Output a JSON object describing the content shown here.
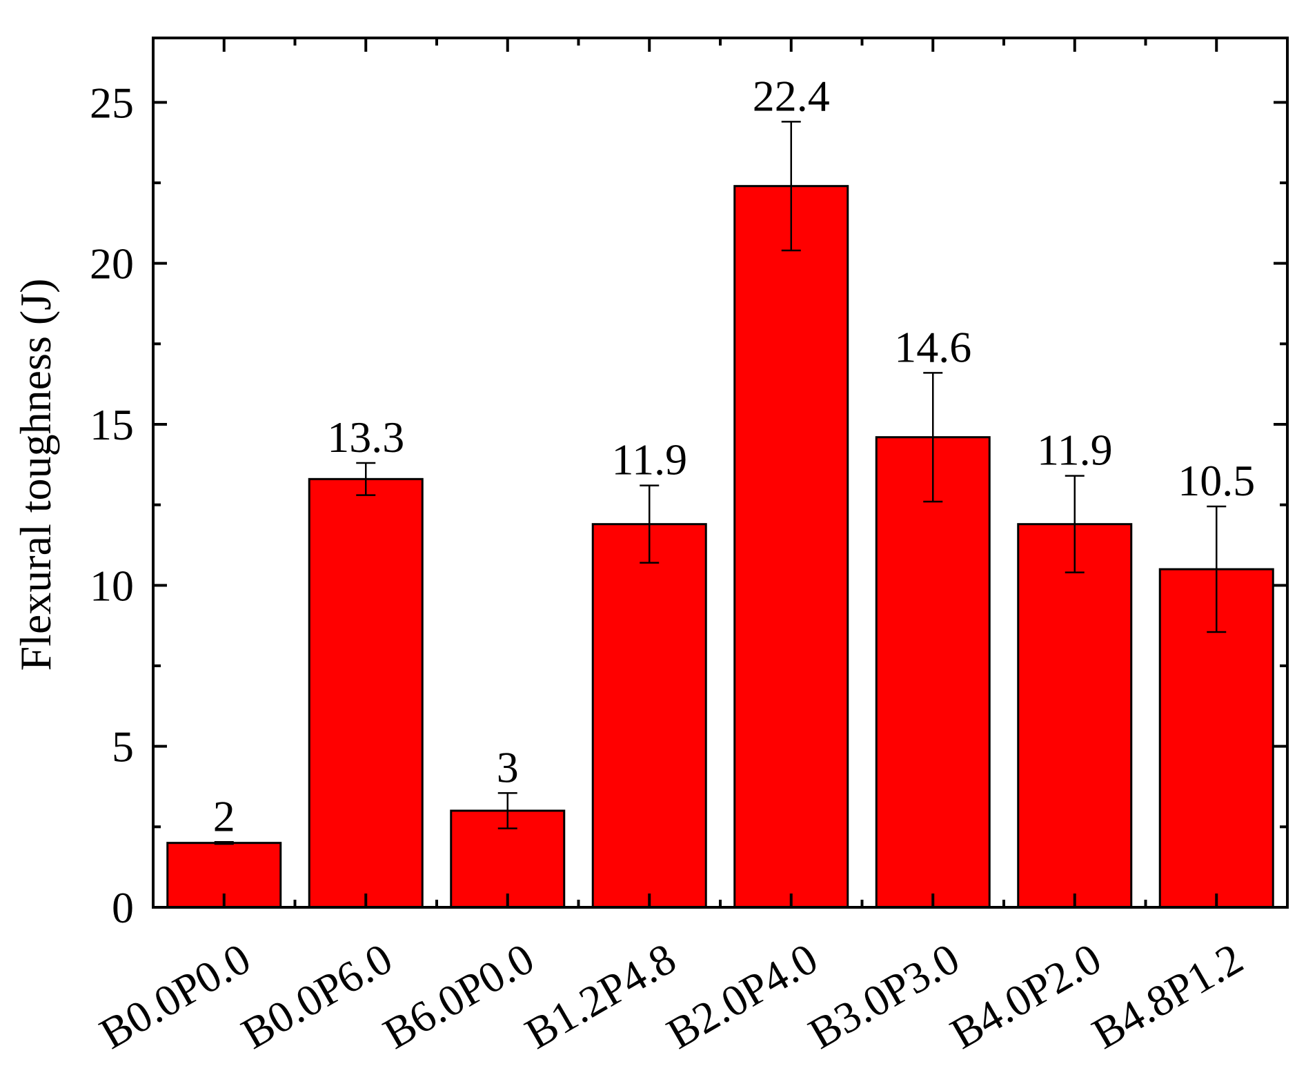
{
  "chart_data": {
    "type": "bar",
    "title": "",
    "xlabel": "",
    "ylabel": "Flexural toughness (J)",
    "categories": [
      "B0.0P0.0",
      "B0.0P6.0",
      "B6.0P0.0",
      "B1.2P4.8",
      "B2.0P4.0",
      "B3.0P3.0",
      "B4.0P2.0",
      "B4.8P1.2"
    ],
    "values": [
      2,
      13.3,
      3,
      11.9,
      22.4,
      14.6,
      11.9,
      10.5
    ],
    "value_labels": [
      "2",
      "13.3",
      "3",
      "11.9",
      "22.4",
      "14.6",
      "11.9",
      "10.5"
    ],
    "error": [
      0.03,
      0.5,
      0.55,
      1.2,
      2.0,
      2.0,
      1.5,
      1.95
    ],
    "ylim": [
      0,
      27
    ],
    "yticks": [
      0,
      5,
      10,
      15,
      20,
      25
    ],
    "ytick_labels": [
      "0",
      "5",
      "10",
      "15",
      "20",
      "25"
    ],
    "grid": false,
    "legend": "none",
    "colors": {
      "bar_fill": "#ff0000",
      "bar_stroke": "#000000",
      "axis": "#000000"
    }
  }
}
